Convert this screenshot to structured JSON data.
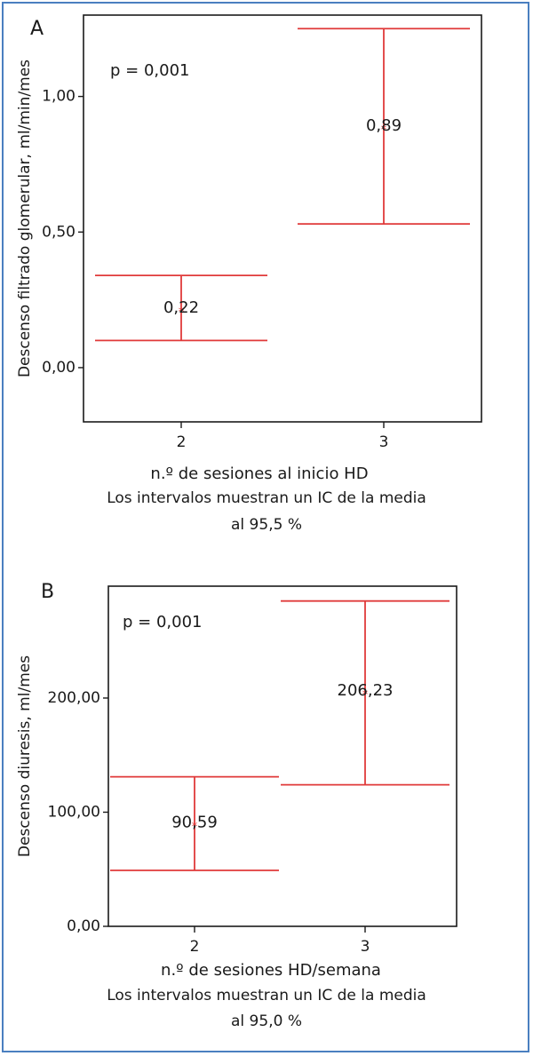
{
  "charts": [
    {
      "panel_label": "A",
      "pvalue": "p = 0,001",
      "xlabel": "n.º de sesiones al inicio HD",
      "caption_line1": "Los intervalos muestran un IC de la media",
      "caption_line2": "al 95,5 %",
      "ylabel": "Descenso filtrado glomerular, ml/min/mes",
      "ytick_labels": [
        "0,00",
        "0,50",
        "1,00"
      ]
    },
    {
      "panel_label": "B",
      "pvalue": "p = 0,001",
      "xlabel": "n.º de sesiones HD/semana",
      "caption_line1": "Los intervalos muestran un IC de la media",
      "caption_line2": "al 95,0 %",
      "ylabel": "Descenso diuresis, ml/mes",
      "ytick_labels": [
        "0,00",
        "100,00",
        "200,00"
      ]
    }
  ],
  "chart_data": [
    {
      "type": "errorbar",
      "categories": [
        "2",
        "3"
      ],
      "series": [
        {
          "means": [
            0.22,
            0.89
          ],
          "mean_labels": [
            "0,22",
            "0,89"
          ],
          "ci_lower": [
            0.1,
            0.53
          ],
          "ci_upper": [
            0.34,
            1.25
          ]
        }
      ],
      "xlabel": "n.º de sesiones al inicio HD",
      "ylabel": "Descenso filtrado glomerular, ml/min/mes",
      "yticks": [
        0,
        0.5,
        1.0
      ],
      "ylim": [
        -0.2,
        1.3
      ],
      "grid": false,
      "color": "#e03a3a"
    },
    {
      "type": "errorbar",
      "categories": [
        "2",
        "3"
      ],
      "series": [
        {
          "means": [
            90.59,
            206.23
          ],
          "mean_labels": [
            "90,59",
            "206,23"
          ],
          "ci_lower": [
            49,
            124
          ],
          "ci_upper": [
            131,
            285
          ]
        }
      ],
      "xlabel": "n.º de sesiones HD/semana",
      "ylabel": "Descenso diuresis, ml/mes",
      "yticks": [
        0,
        100,
        200
      ],
      "ylim": [
        0,
        298
      ],
      "grid": false,
      "color": "#e03a3a"
    }
  ]
}
